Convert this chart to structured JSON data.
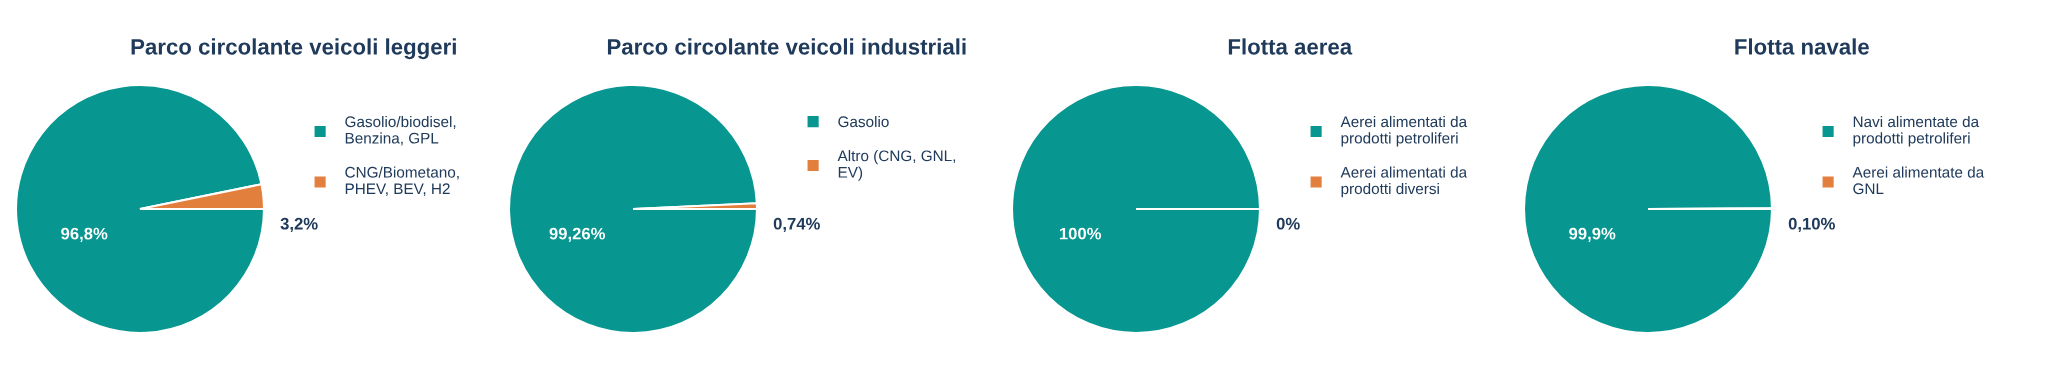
{
  "chart_data": [
    {
      "type": "pie",
      "title": "Parco circolante veicoli leggeri",
      "categories": [
        "Gasolio/biodisel,\nBenzina, GPL",
        "CNG/Biometano,\nPHEV, BEV, H2"
      ],
      "values": [
        96.8,
        3.2
      ],
      "colors": [
        "#079690",
        "#e37f3c"
      ],
      "value_labels": [
        "96,8%",
        "3,2%"
      ],
      "legend": "right"
    },
    {
      "type": "pie",
      "title": "Parco circolante veicoli industriali",
      "categories": [
        "Gasolio",
        "Altro (CNG, GNL,\nEV)"
      ],
      "values": [
        99.26,
        0.74
      ],
      "colors": [
        "#079690",
        "#e37f3c"
      ],
      "value_labels": [
        "99,26%",
        "0,74%"
      ],
      "legend": "right"
    },
    {
      "type": "pie",
      "title": "Flotta aerea",
      "categories": [
        "Aerei alimentati da\nprodotti petroliferi",
        "Aerei alimentati da\nprodotti diversi"
      ],
      "values": [
        100,
        0
      ],
      "colors": [
        "#079690",
        "#e37f3c"
      ],
      "value_labels": [
        "100%",
        "0%"
      ],
      "legend": "right"
    },
    {
      "type": "pie",
      "title": "Flotta navale",
      "categories": [
        "Navi alimentate da\nprodotti petroliferi",
        "Aerei alimentate da\nGNL"
      ],
      "values": [
        99.9,
        0.1
      ],
      "colors": [
        "#079690",
        "#e37f3c"
      ],
      "value_labels": [
        "99,9%",
        "0,10%"
      ],
      "legend": "right"
    }
  ]
}
